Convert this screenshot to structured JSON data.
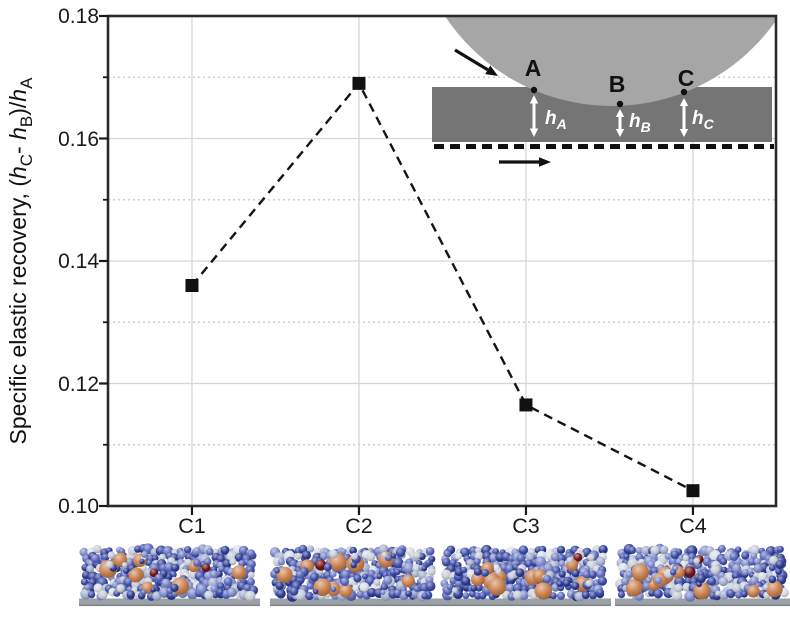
{
  "chart_data": {
    "type": "line",
    "categories": [
      "C1",
      "C2",
      "C3",
      "C4"
    ],
    "values": [
      0.136,
      0.169,
      0.1165,
      0.1025
    ],
    "series_name": "specific elastic recovery",
    "title": "",
    "xlabel": "",
    "ylabel": "Specific elastic recovery, (hC- hB)/hA",
    "ylim": [
      0.1,
      0.18
    ],
    "ytick_labels": [
      "0.18",
      "0.16",
      "0.14",
      "0.12",
      "0.10"
    ],
    "ytick_values": [
      0.18,
      0.16,
      0.14,
      0.12,
      0.1
    ],
    "ytick_minor": [
      0.17,
      0.15,
      0.13,
      0.11
    ],
    "line_style": "dashed",
    "line_color": "#141414",
    "marker": "filled-square",
    "marker_color": "#111111",
    "grid": "major-solid, minor-dotted",
    "legend": "none"
  },
  "ylabel_parts": {
    "prefix": "Specific elastic recovery, (",
    "h": "h",
    "sub_c": "C",
    "mid1": "- ",
    "sub_b": "B",
    "mid2": ")/",
    "sub_a": "A"
  },
  "inset": {
    "point_labels": [
      "A",
      "B",
      "C"
    ],
    "h_base": "h",
    "h_subs": [
      "A",
      "B",
      "C"
    ],
    "ball_color": "#a6a6a6",
    "film_color": "#757575",
    "arrow_color": "#111111",
    "height_arrow_color": "#ffffff"
  },
  "snapshots": {
    "count": 4,
    "substrate_color": "#9aa1a7",
    "substrate_edge_color": "#7f858a",
    "palette": [
      "#2c3a92",
      "#3c4ca8",
      "#5a68ba",
      "#7e8bca",
      "#a3aecd",
      "#c7ccd6",
      "#dadee4"
    ],
    "orange_color": "#c9804e",
    "dark_red_color": "#701418"
  }
}
